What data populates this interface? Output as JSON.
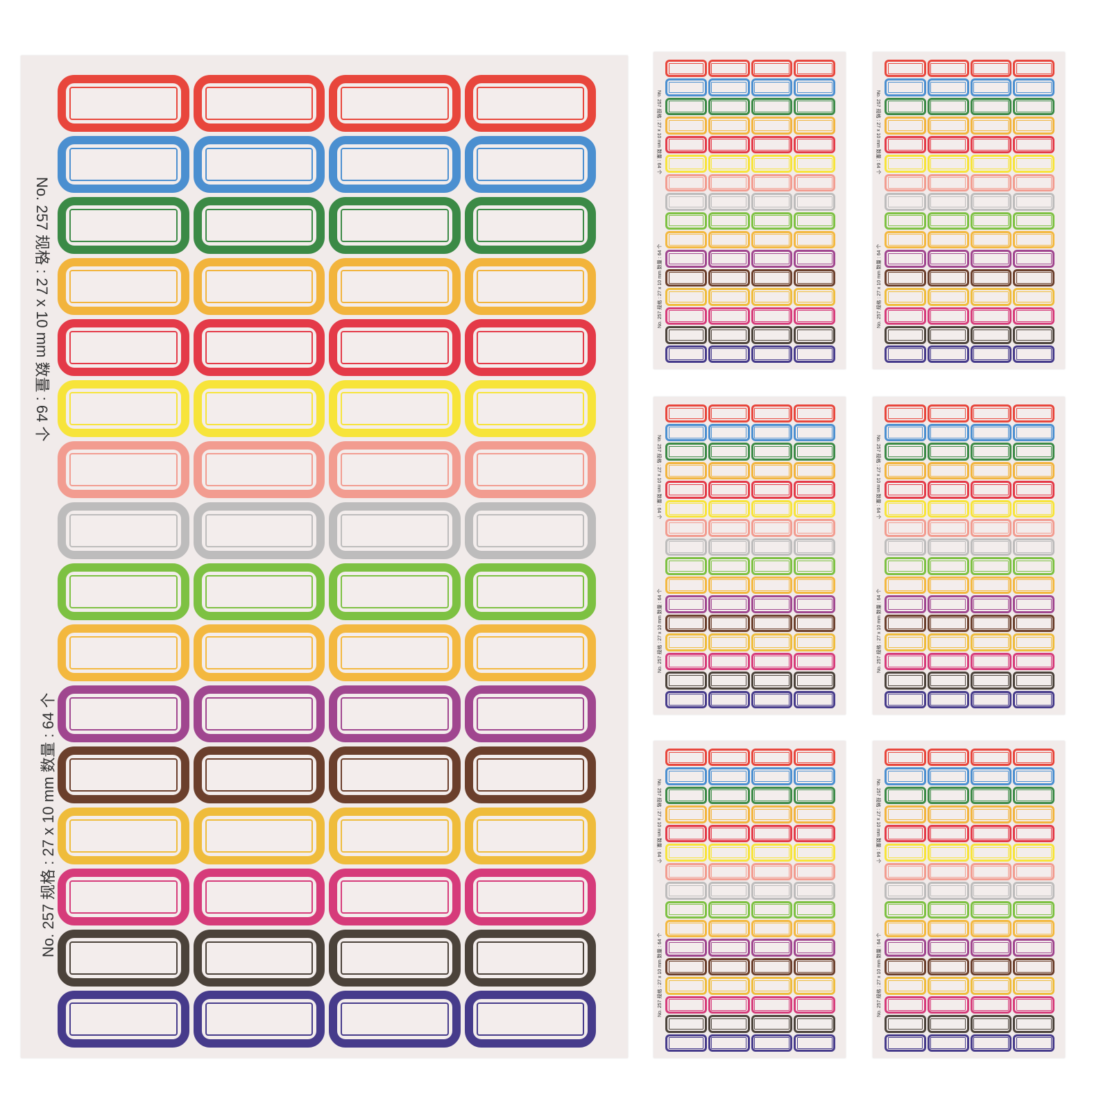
{
  "sheet_text": "No. 257  规格 : 27 x 10 mm   数量 : 64 个",
  "row_colors": [
    "#e8463c",
    "#4b8fd0",
    "#3b8a46",
    "#f2b43c",
    "#e43a48",
    "#f7e43a",
    "#f29c90",
    "#bdbcbc",
    "#7dc142",
    "#f3b83f",
    "#a0468f",
    "#6b3f2c",
    "#efbc3b",
    "#d63b7a",
    "#4b423a",
    "#463b8b"
  ],
  "columns": 4,
  "sheets_shown": 7
}
